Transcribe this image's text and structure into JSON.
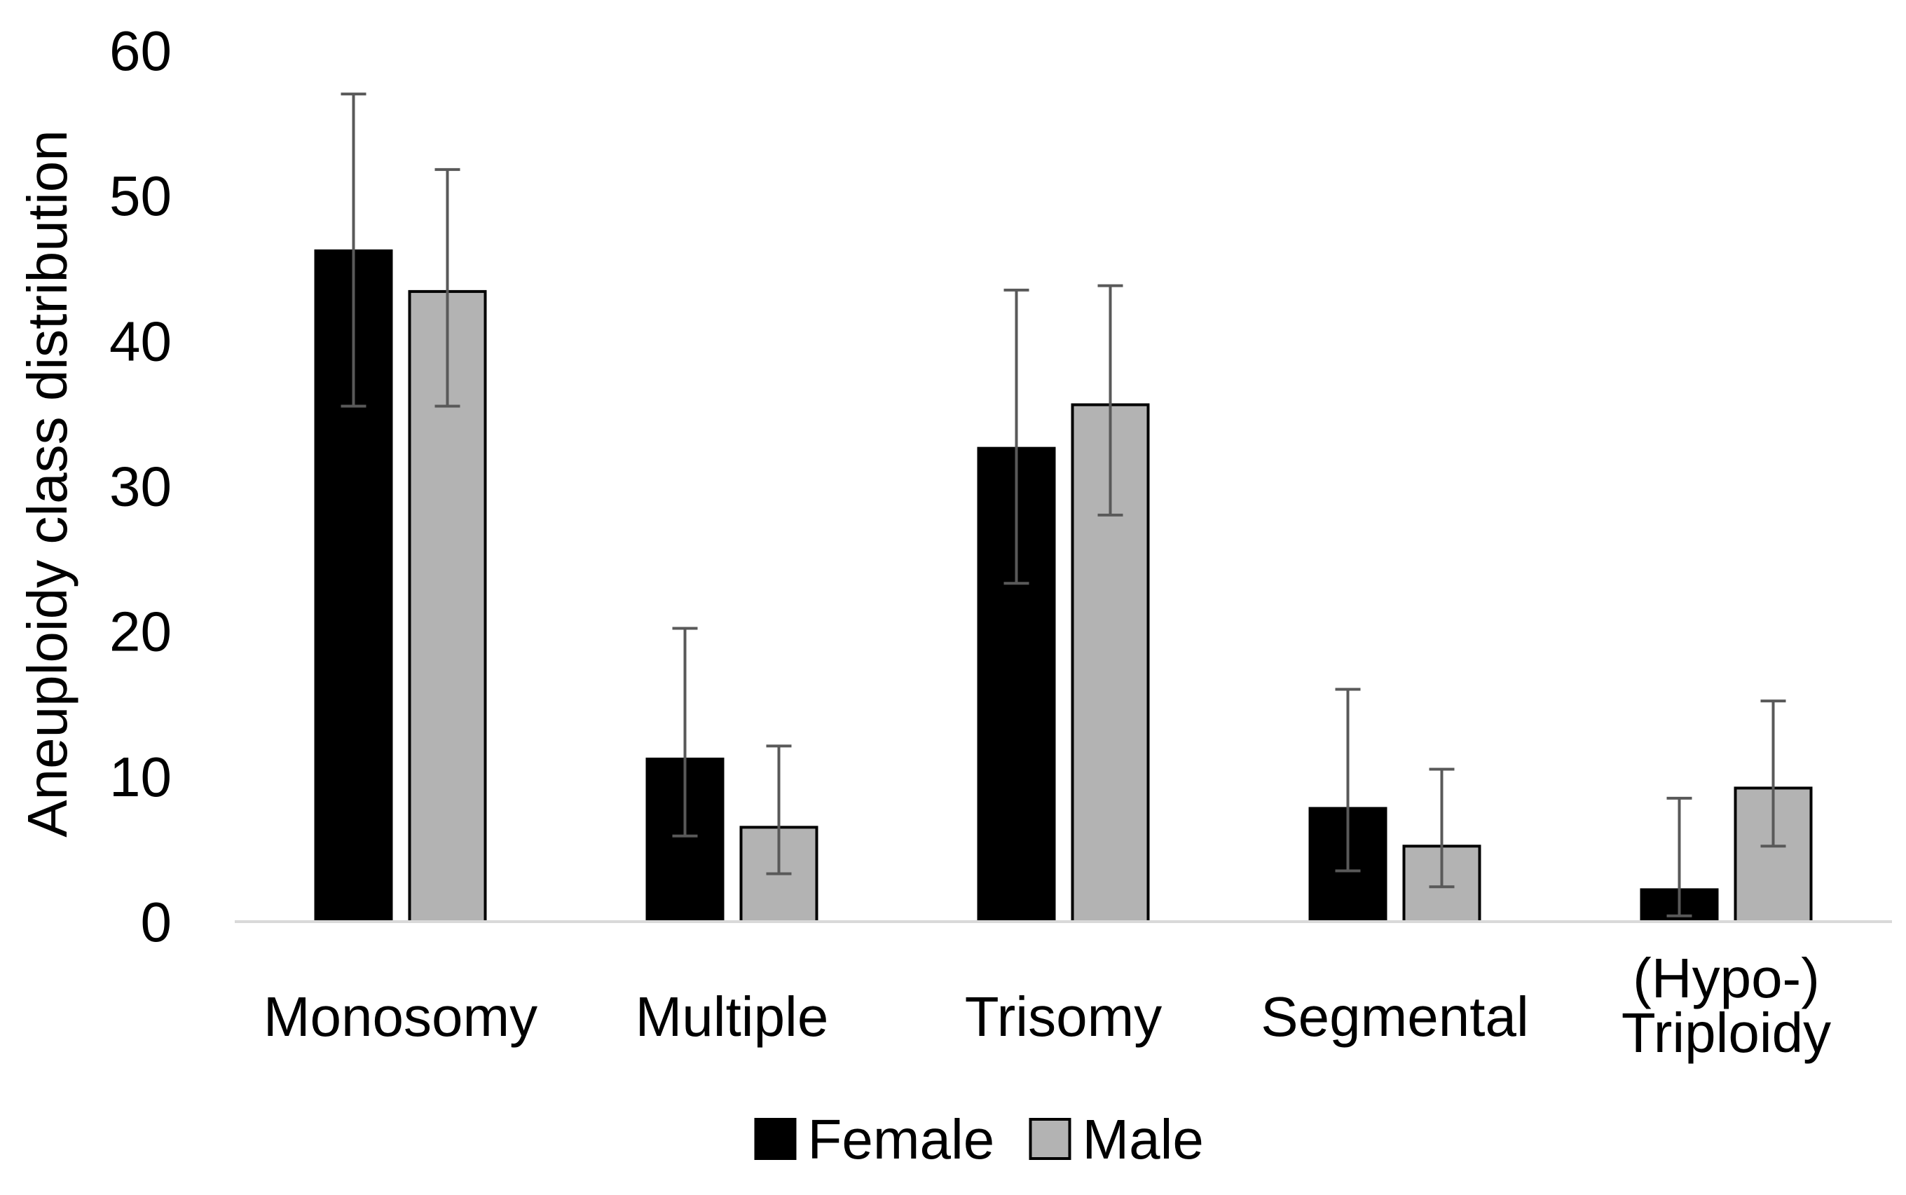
{
  "chart_data": {
    "type": "bar",
    "title": "",
    "xlabel": "",
    "ylabel": "Aneuploidy class distribution",
    "ylim": [
      0,
      60
    ],
    "yticks": [
      "0",
      "10",
      "20",
      "30",
      "40",
      "50",
      "60"
    ],
    "categories": [
      [
        "Monosomy"
      ],
      [
        "Multiple"
      ],
      [
        "Trisomy"
      ],
      [
        "Segmental"
      ],
      [
        "(Hypo-)",
        "Triploidy"
      ]
    ],
    "series": [
      {
        "name": "Female",
        "color": "#000000",
        "values": [
          46.2,
          11.2,
          32.6,
          7.8,
          2.2
        ],
        "error_low": [
          35.5,
          5.9,
          23.3,
          3.5,
          0.4
        ],
        "error_high": [
          57.0,
          20.2,
          43.5,
          16.0,
          8.5
        ]
      },
      {
        "name": "Male",
        "color": "#b3b3b3",
        "values": [
          43.4,
          6.5,
          35.6,
          5.2,
          9.2
        ],
        "error_low": [
          35.5,
          3.3,
          28.0,
          2.4,
          5.2
        ],
        "error_high": [
          51.8,
          12.1,
          43.8,
          10.5,
          15.2
        ]
      }
    ],
    "grid": false,
    "legend_position": "bottom-center"
  }
}
